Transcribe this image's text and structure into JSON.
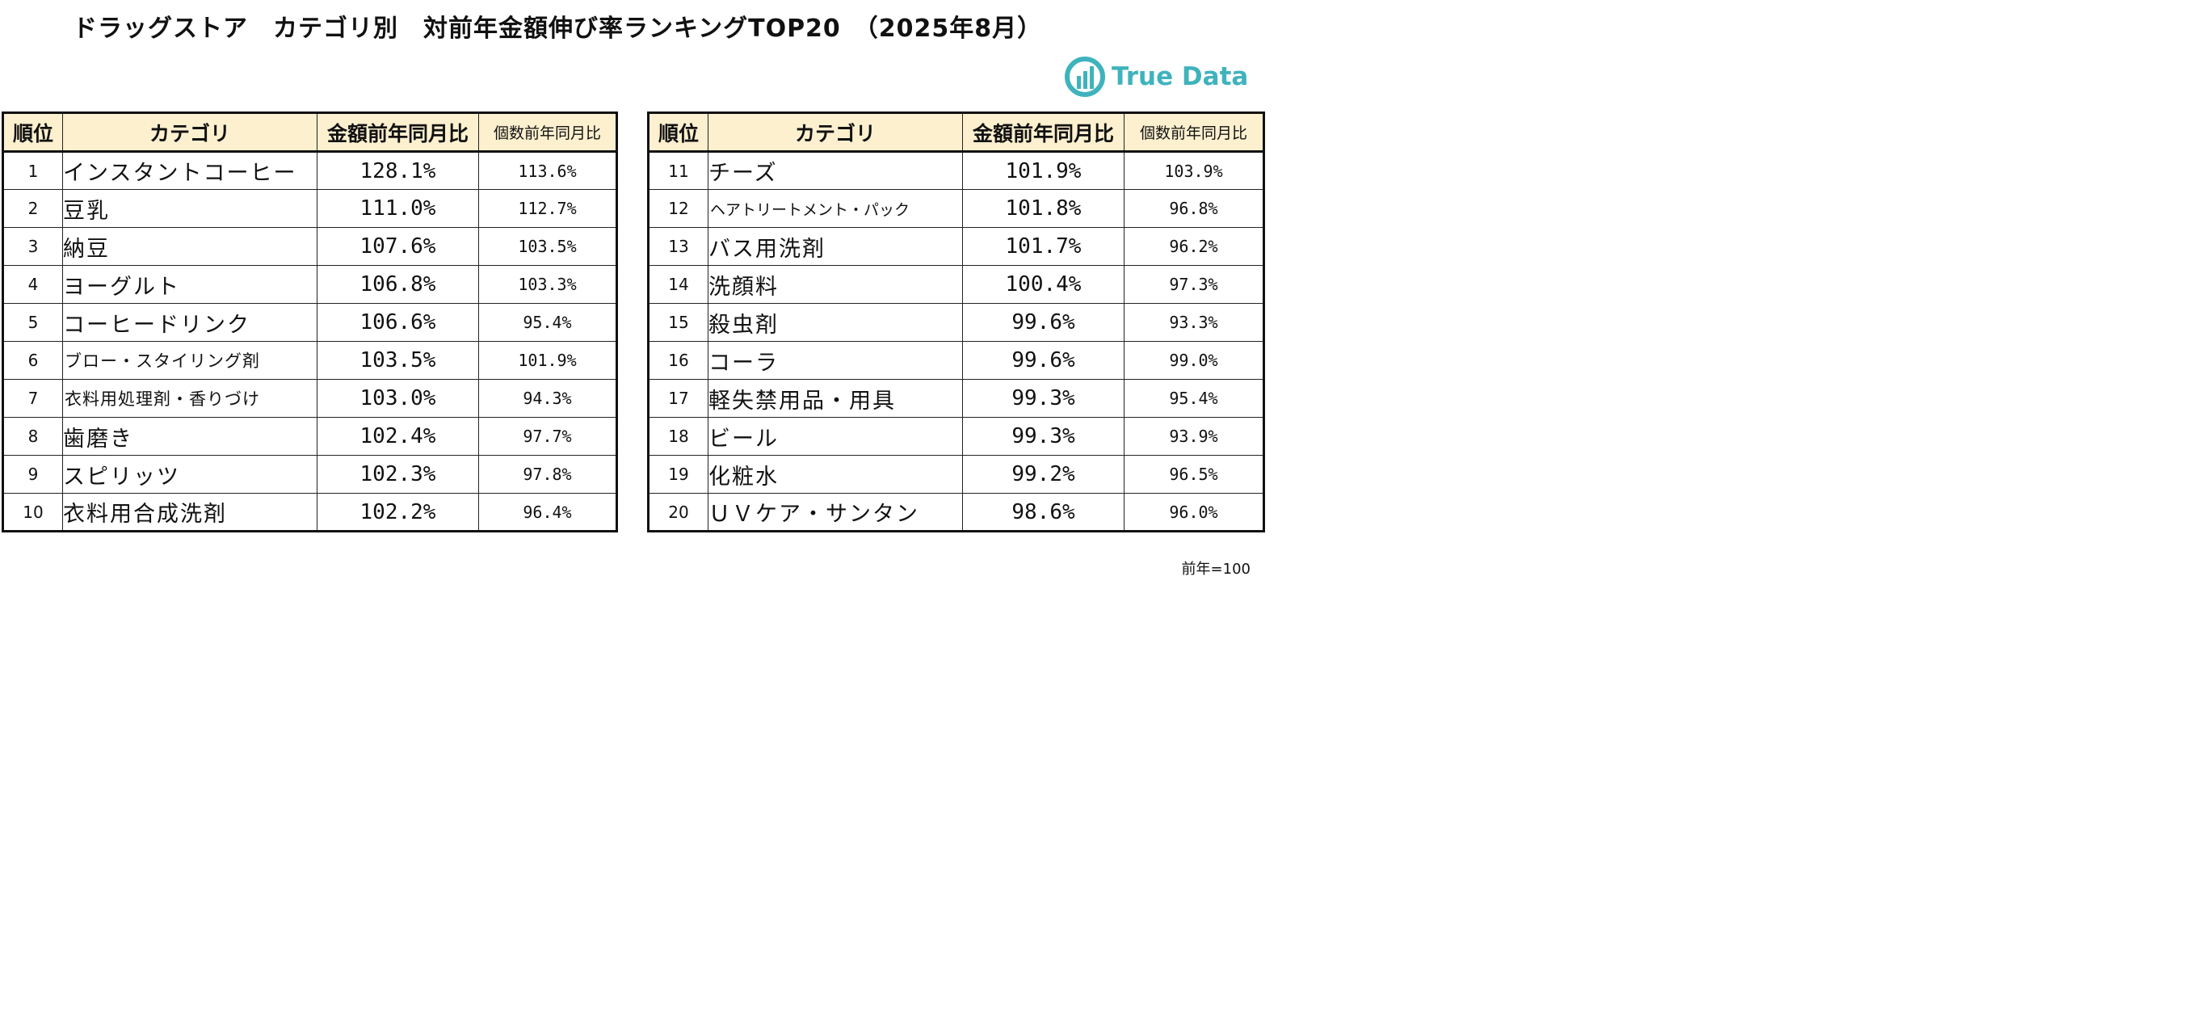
{
  "title": "ドラッグストア　カテゴリ別　対前年金額伸び率ランキングTOP20　（2025年8月）",
  "logo": {
    "text": "True Data",
    "icon": "truedata-logo-icon",
    "color": "#3fb3bd"
  },
  "headers": {
    "rank": "順位",
    "category": "カテゴリ",
    "amount_yoy": "金額前年同月比",
    "units_yoy": "個数前年同月比"
  },
  "left_rows": [
    {
      "rank": "1",
      "category": "インスタントコーヒー",
      "amount": "128.1%",
      "units": "113.6%"
    },
    {
      "rank": "2",
      "category": "豆乳",
      "amount": "111.0%",
      "units": "112.7%"
    },
    {
      "rank": "3",
      "category": "納豆",
      "amount": "107.6%",
      "units": "103.5%"
    },
    {
      "rank": "4",
      "category": "ヨーグルト",
      "amount": "106.8%",
      "units": "103.3%"
    },
    {
      "rank": "5",
      "category": "コーヒードリンク",
      "amount": "106.6%",
      "units": "95.4%"
    },
    {
      "rank": "6",
      "category": "ブロー・スタイリング剤",
      "amount": "103.5%",
      "units": "101.9%"
    },
    {
      "rank": "7",
      "category": "衣料用処理剤・香りづけ",
      "amount": "103.0%",
      "units": "94.3%"
    },
    {
      "rank": "8",
      "category": "歯磨き",
      "amount": "102.4%",
      "units": "97.7%"
    },
    {
      "rank": "9",
      "category": "スピリッツ",
      "amount": "102.3%",
      "units": "97.8%"
    },
    {
      "rank": "10",
      "category": "衣料用合成洗剤",
      "amount": "102.2%",
      "units": "96.4%"
    }
  ],
  "right_rows": [
    {
      "rank": "11",
      "category": "チーズ",
      "amount": "101.9%",
      "units": "103.9%"
    },
    {
      "rank": "12",
      "category": "ヘアトリートメント・パック",
      "amount": "101.8%",
      "units": "96.8%"
    },
    {
      "rank": "13",
      "category": "バス用洗剤",
      "amount": "101.7%",
      "units": "96.2%"
    },
    {
      "rank": "14",
      "category": "洗顔料",
      "amount": "100.4%",
      "units": "97.3%"
    },
    {
      "rank": "15",
      "category": "殺虫剤",
      "amount": "99.6%",
      "units": "93.3%"
    },
    {
      "rank": "16",
      "category": "コーラ",
      "amount": "99.6%",
      "units": "99.0%"
    },
    {
      "rank": "17",
      "category": "軽失禁用品・用具",
      "amount": "99.3%",
      "units": "95.4%"
    },
    {
      "rank": "18",
      "category": "ビール",
      "amount": "99.3%",
      "units": "93.9%"
    },
    {
      "rank": "19",
      "category": "化粧水",
      "amount": "99.2%",
      "units": "96.5%"
    },
    {
      "rank": "20",
      "category": "ＵＶケア・サンタン",
      "amount": "98.6%",
      "units": "96.0%"
    }
  ],
  "note": "前年=100"
}
